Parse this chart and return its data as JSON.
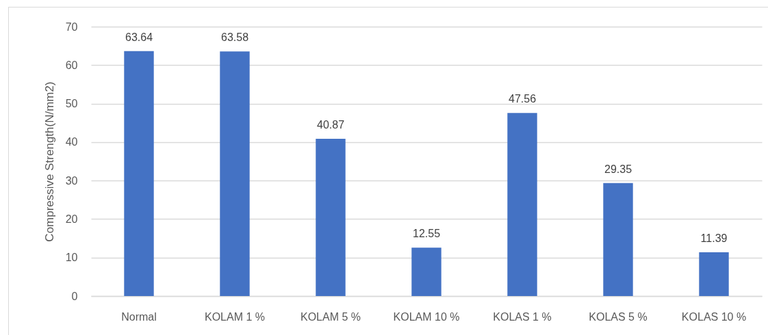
{
  "chart_data": {
    "type": "bar",
    "ylabel": "Compressive Strength(N/mm2)",
    "categories": [
      "Normal",
      "KOLAM 1 %",
      "KOLAM 5 %",
      "KOLAM 10 %",
      "KOLAS 1 %",
      "KOLAS 5 %",
      "KOLAS 10 %"
    ],
    "values": [
      63.64,
      63.58,
      40.87,
      12.55,
      47.56,
      29.35,
      11.39
    ],
    "color": "#4472c4",
    "ylim": [
      0,
      70
    ],
    "yticks": [
      0,
      10,
      20,
      30,
      40,
      50,
      60,
      70
    ],
    "grid": "y",
    "data_labels": true
  }
}
